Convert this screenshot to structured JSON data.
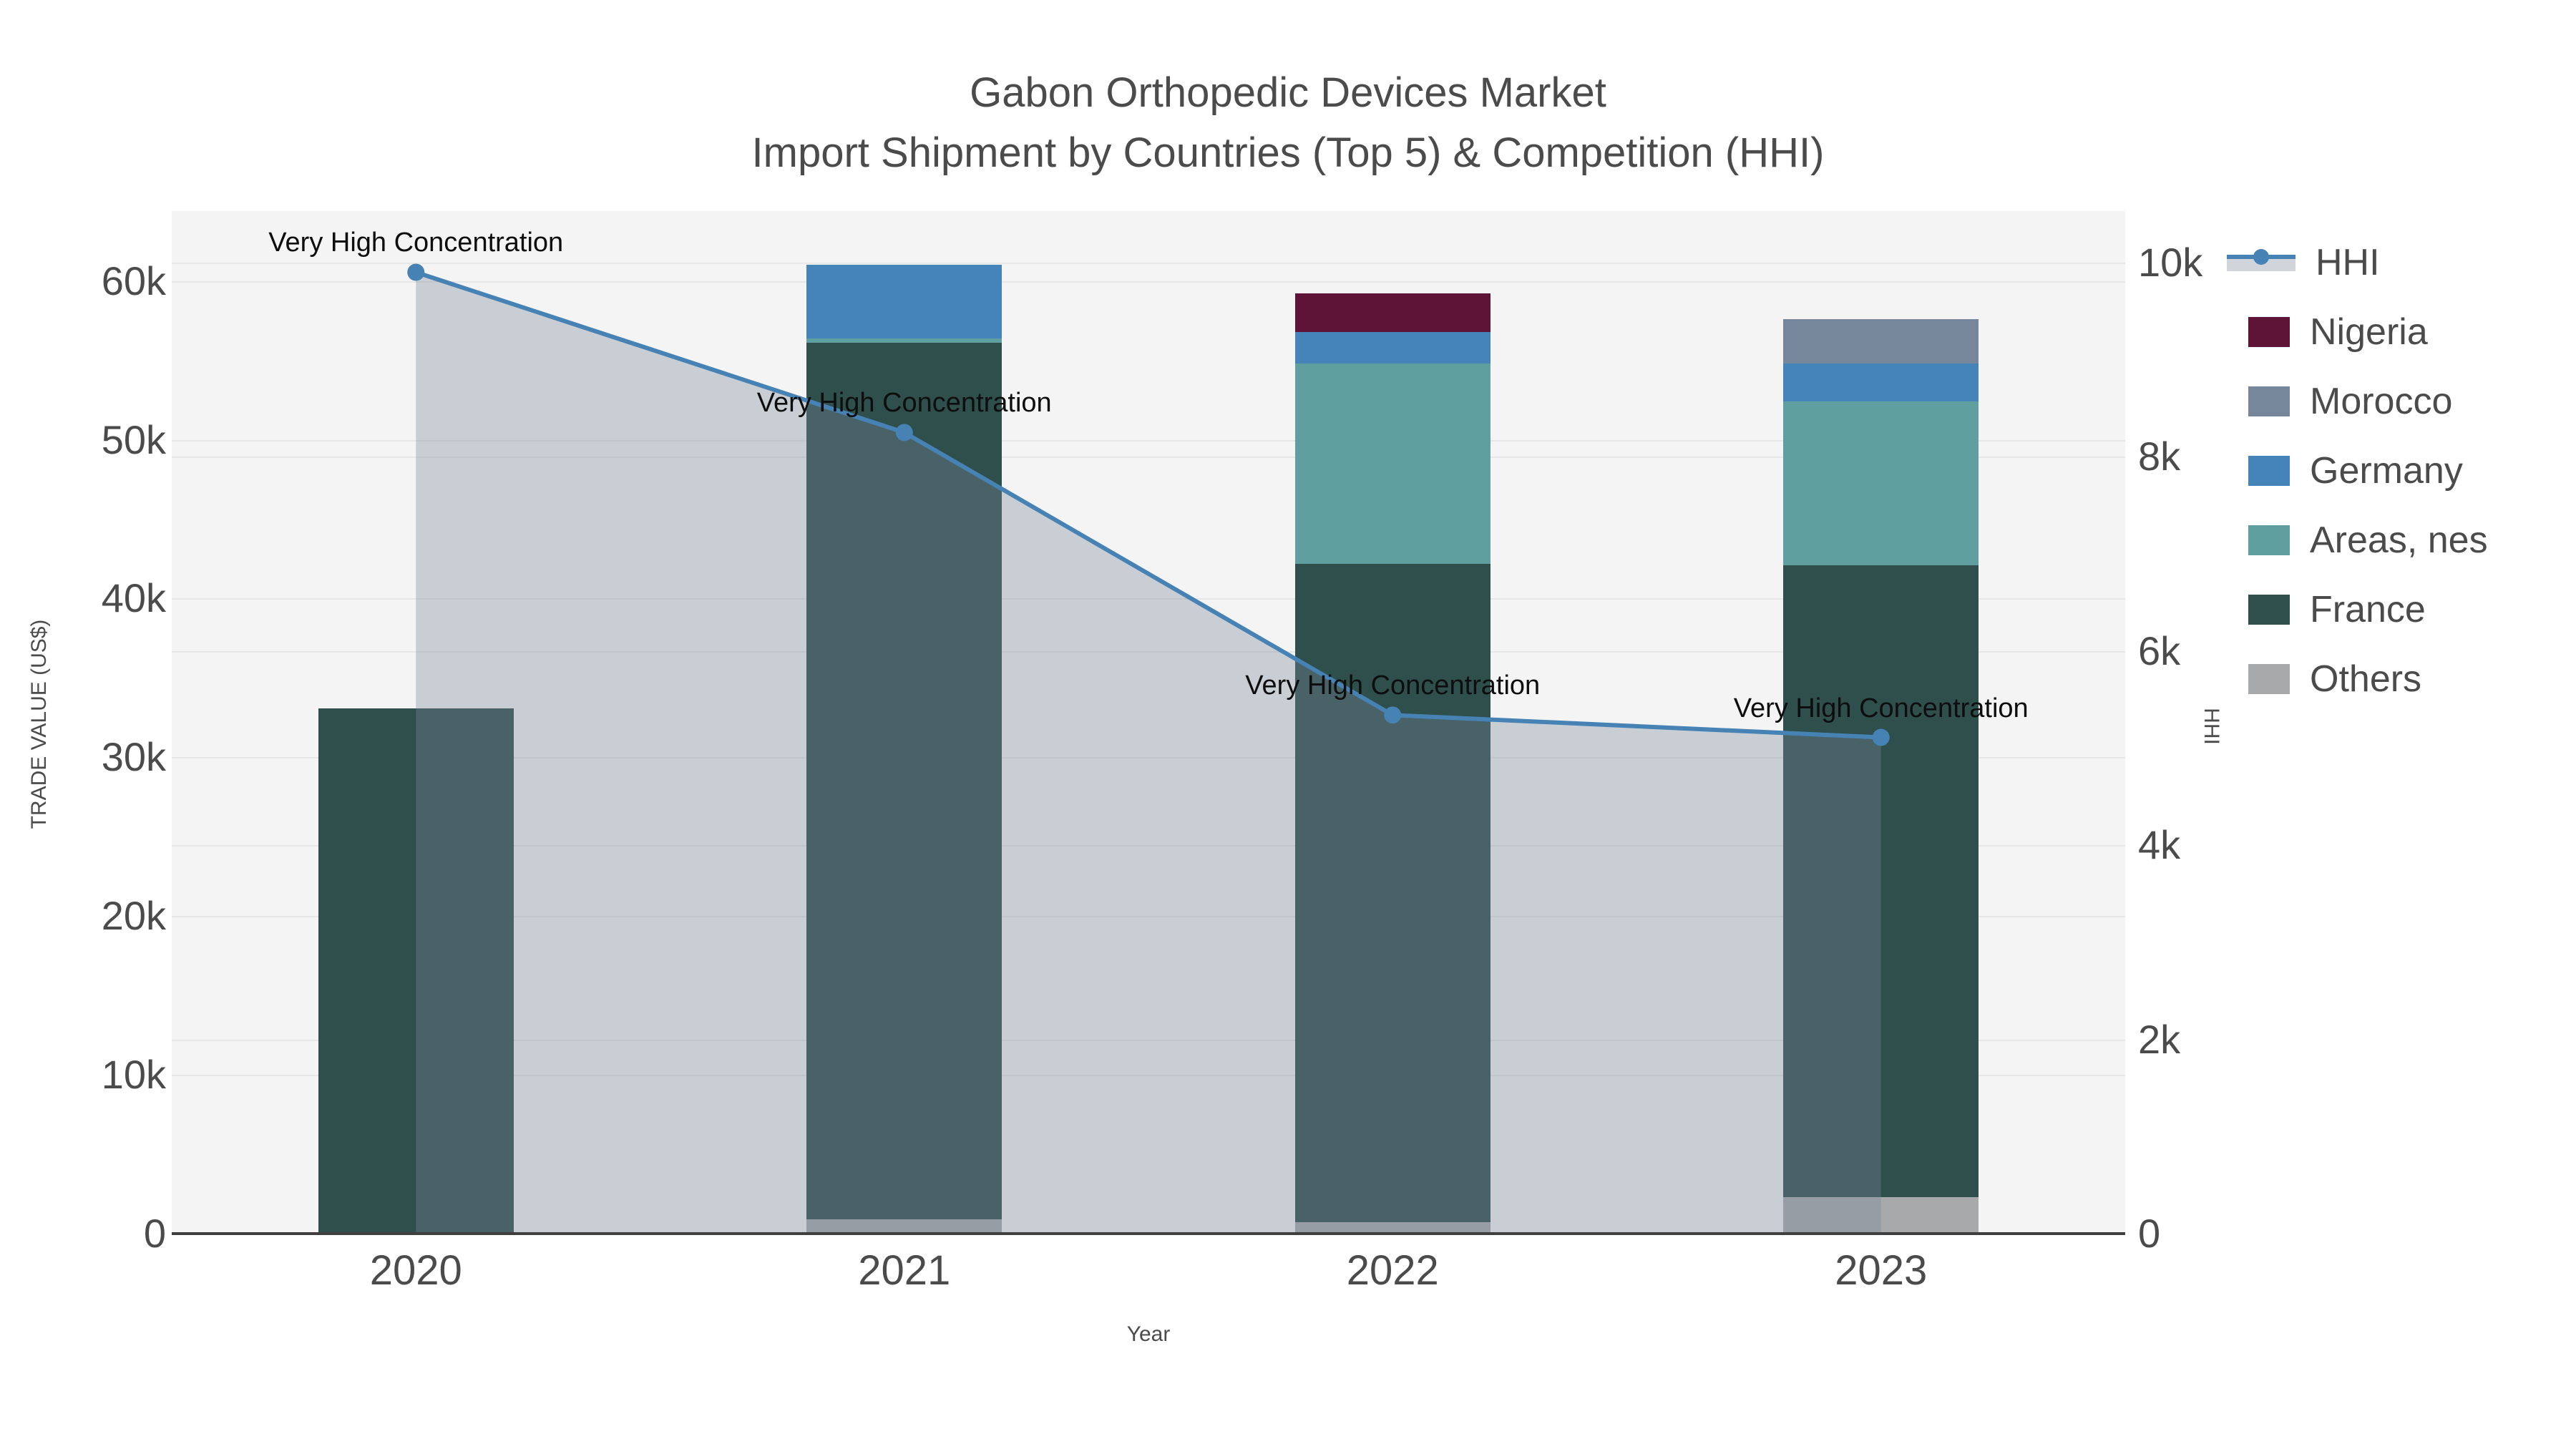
{
  "title": {
    "line1": "Gabon Orthopedic Devices Market",
    "line2": "Import Shipment by Countries (Top 5) & Competition (HHI)"
  },
  "colors": {
    "hhi_line": "#4682b4",
    "hhi_area": "rgba(119,136,153,0.35)",
    "nigeria": "#5d1437",
    "morocco": "#76879b",
    "germany": "#4484b8",
    "areas_nes": "#5f9fa0",
    "france": "#2f4f4d",
    "others": "#a7a9ab"
  },
  "chart_data": {
    "type": "bar",
    "subtype": "stacked-bar-with-line",
    "categories": [
      "2020",
      "2021",
      "2022",
      "2023"
    ],
    "series": [
      {
        "name": "Others",
        "type": "bar",
        "color": "#a7a9ab",
        "values": [
          0,
          900,
          700,
          2300
        ]
      },
      {
        "name": "France",
        "type": "bar",
        "color": "#2f4f4d",
        "values": [
          33100,
          55200,
          41500,
          39800
        ]
      },
      {
        "name": "Areas, nes",
        "type": "bar",
        "color": "#5f9fa0",
        "values": [
          0,
          300,
          12600,
          10300
        ]
      },
      {
        "name": "Germany",
        "type": "bar",
        "color": "#4484b8",
        "values": [
          0,
          4600,
          2000,
          2400
        ]
      },
      {
        "name": "Morocco",
        "type": "bar",
        "color": "#76879b",
        "values": [
          0,
          0,
          0,
          2800
        ]
      },
      {
        "name": "Nigeria",
        "type": "bar",
        "color": "#5d1437",
        "values": [
          0,
          0,
          2400,
          0
        ]
      }
    ],
    "line": {
      "name": "HHI",
      "axis": "right",
      "color": "#4682b4",
      "area_color": "rgba(119,136,153,0.35)",
      "values": [
        9900,
        8250,
        5340,
        5110
      ]
    },
    "left_axis": {
      "title": "TRADE VALUE (US$)",
      "range": [
        0,
        64400
      ],
      "ticks": [
        {
          "value": 0,
          "label": "0"
        },
        {
          "value": 10000,
          "label": "10k"
        },
        {
          "value": 20000,
          "label": "20k"
        },
        {
          "value": 30000,
          "label": "30k"
        },
        {
          "value": 40000,
          "label": "40k"
        },
        {
          "value": 50000,
          "label": "50k"
        },
        {
          "value": 60000,
          "label": "60k"
        }
      ]
    },
    "right_axis": {
      "title": "HHI",
      "range": [
        0,
        10530
      ],
      "ticks": [
        {
          "value": 0,
          "label": "0"
        },
        {
          "value": 2000,
          "label": "2k"
        },
        {
          "value": 4000,
          "label": "4k"
        },
        {
          "value": 6000,
          "label": "6k"
        },
        {
          "value": 8000,
          "label": "8k"
        },
        {
          "value": 10000,
          "label": "10k"
        }
      ]
    },
    "x_axis": {
      "title": "Year"
    },
    "annotations": [
      {
        "category_index": 0,
        "text": "Very High Concentration"
      },
      {
        "category_index": 1,
        "text": "Very High Concentration"
      },
      {
        "category_index": 2,
        "text": "Very High Concentration"
      },
      {
        "category_index": 3,
        "text": "Very High Concentration"
      }
    ],
    "legend_position": "right",
    "grid": true
  },
  "legend": [
    {
      "label": "HHI",
      "swatch": "line",
      "color": "#4682b4",
      "band_color": "rgba(119,136,153,0.35)"
    },
    {
      "label": "Nigeria",
      "swatch": "square",
      "color": "#5d1437"
    },
    {
      "label": "Morocco",
      "swatch": "square",
      "color": "#76879b"
    },
    {
      "label": "Germany",
      "swatch": "square",
      "color": "#4484b8"
    },
    {
      "label": "Areas, nes",
      "swatch": "square",
      "color": "#5f9fa0"
    },
    {
      "label": "France",
      "swatch": "square",
      "color": "#2f4f4d"
    },
    {
      "label": "Others",
      "swatch": "square",
      "color": "#a7a9ab"
    }
  ]
}
